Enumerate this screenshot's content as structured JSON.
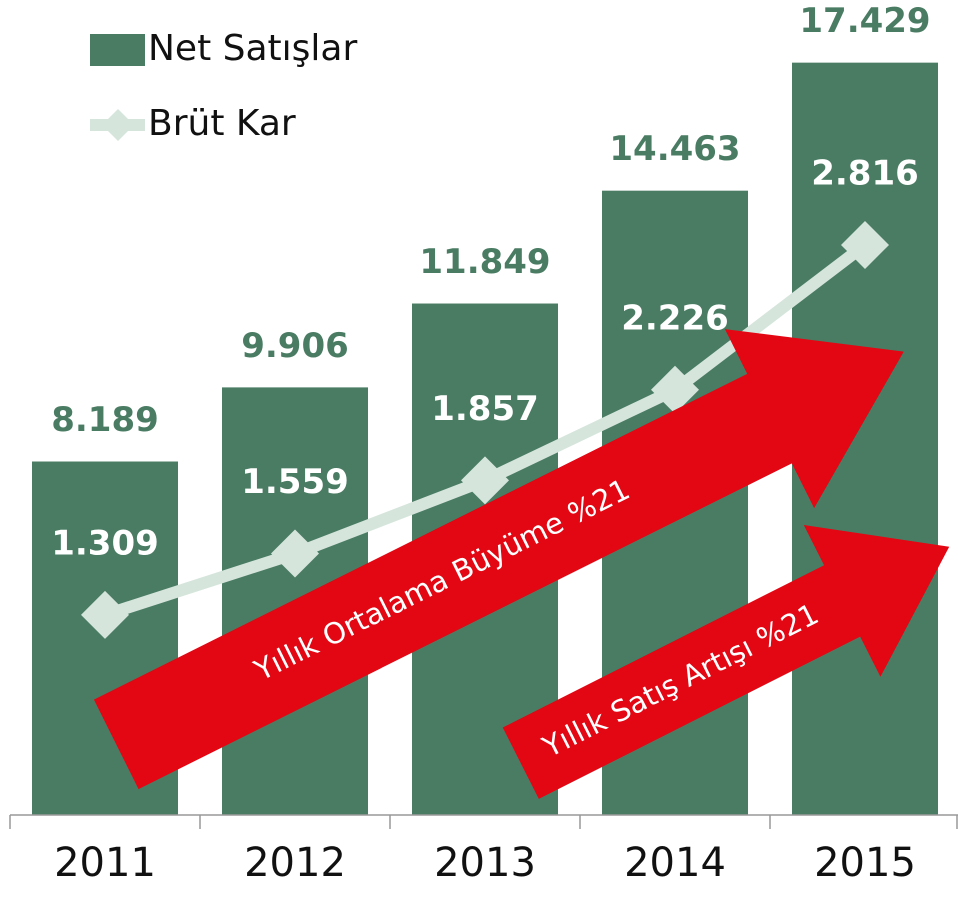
{
  "chart_data": {
    "type": "bar_line",
    "categories": [
      "2011",
      "2012",
      "2013",
      "2014",
      "2015"
    ],
    "series": [
      {
        "name": "Net Satışlar",
        "type": "bar",
        "color": "#4a7c63",
        "values": [
          8.189,
          9.906,
          11.849,
          14.463,
          17.429
        ]
      },
      {
        "name": "Brüt Kar",
        "type": "line",
        "axis": "y2",
        "color": "#d5e5dc",
        "values": [
          1.309,
          1.559,
          1.857,
          2.226,
          2.816
        ]
      }
    ],
    "ylim": [
      0,
      18
    ],
    "y2lim": [
      0.494,
      3.659
    ],
    "annotations": [
      "Yıllık Ortalama Büyüme %21",
      "Yıllık Satış Artışı %21"
    ],
    "legend": "top-left"
  }
}
